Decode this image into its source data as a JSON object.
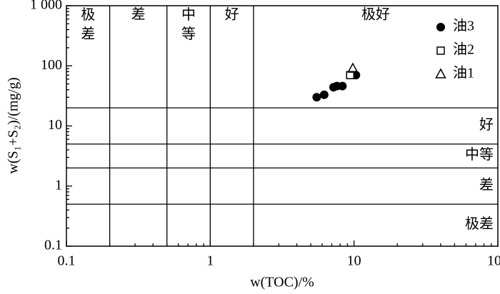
{
  "chart_data": {
    "type": "scatter",
    "x_label": "w(TOC)/%",
    "y_label": "w(S₁+S₂)/(mg/g)",
    "xscale": "log",
    "yscale": "log",
    "xlim": [
      0.1,
      100
    ],
    "ylim": [
      0.1,
      1000
    ],
    "xticks": [
      0.1,
      1,
      10,
      100
    ],
    "yticks": [
      0.1,
      1,
      10,
      100,
      {
        "value": 1000,
        "label": "1 000"
      }
    ],
    "x_zone_bounds": [
      0.2,
      0.5,
      1,
      2
    ],
    "x_zone_labels": [
      "极差",
      "差",
      "中等",
      "好",
      "极好"
    ],
    "y_zone_bounds": [
      0.5,
      2,
      5,
      20
    ],
    "y_zone_labels": [
      "极差",
      "差",
      "中等",
      "好"
    ],
    "series": [
      {
        "name": "油3",
        "color": "#000000",
        "marker": "circle",
        "x": [
          5.5,
          6.2,
          7.2,
          7.6,
          8.3,
          10.3
        ],
        "values": [
          30,
          33,
          44,
          46,
          46,
          70
        ]
      },
      {
        "name": "油2",
        "color": "#000000",
        "marker": "square",
        "x": [
          9.4
        ],
        "values": [
          70
        ]
      },
      {
        "name": "油1",
        "color": "#000000",
        "marker": "triangle",
        "x": [
          9.8
        ],
        "values": [
          90
        ]
      }
    ]
  }
}
